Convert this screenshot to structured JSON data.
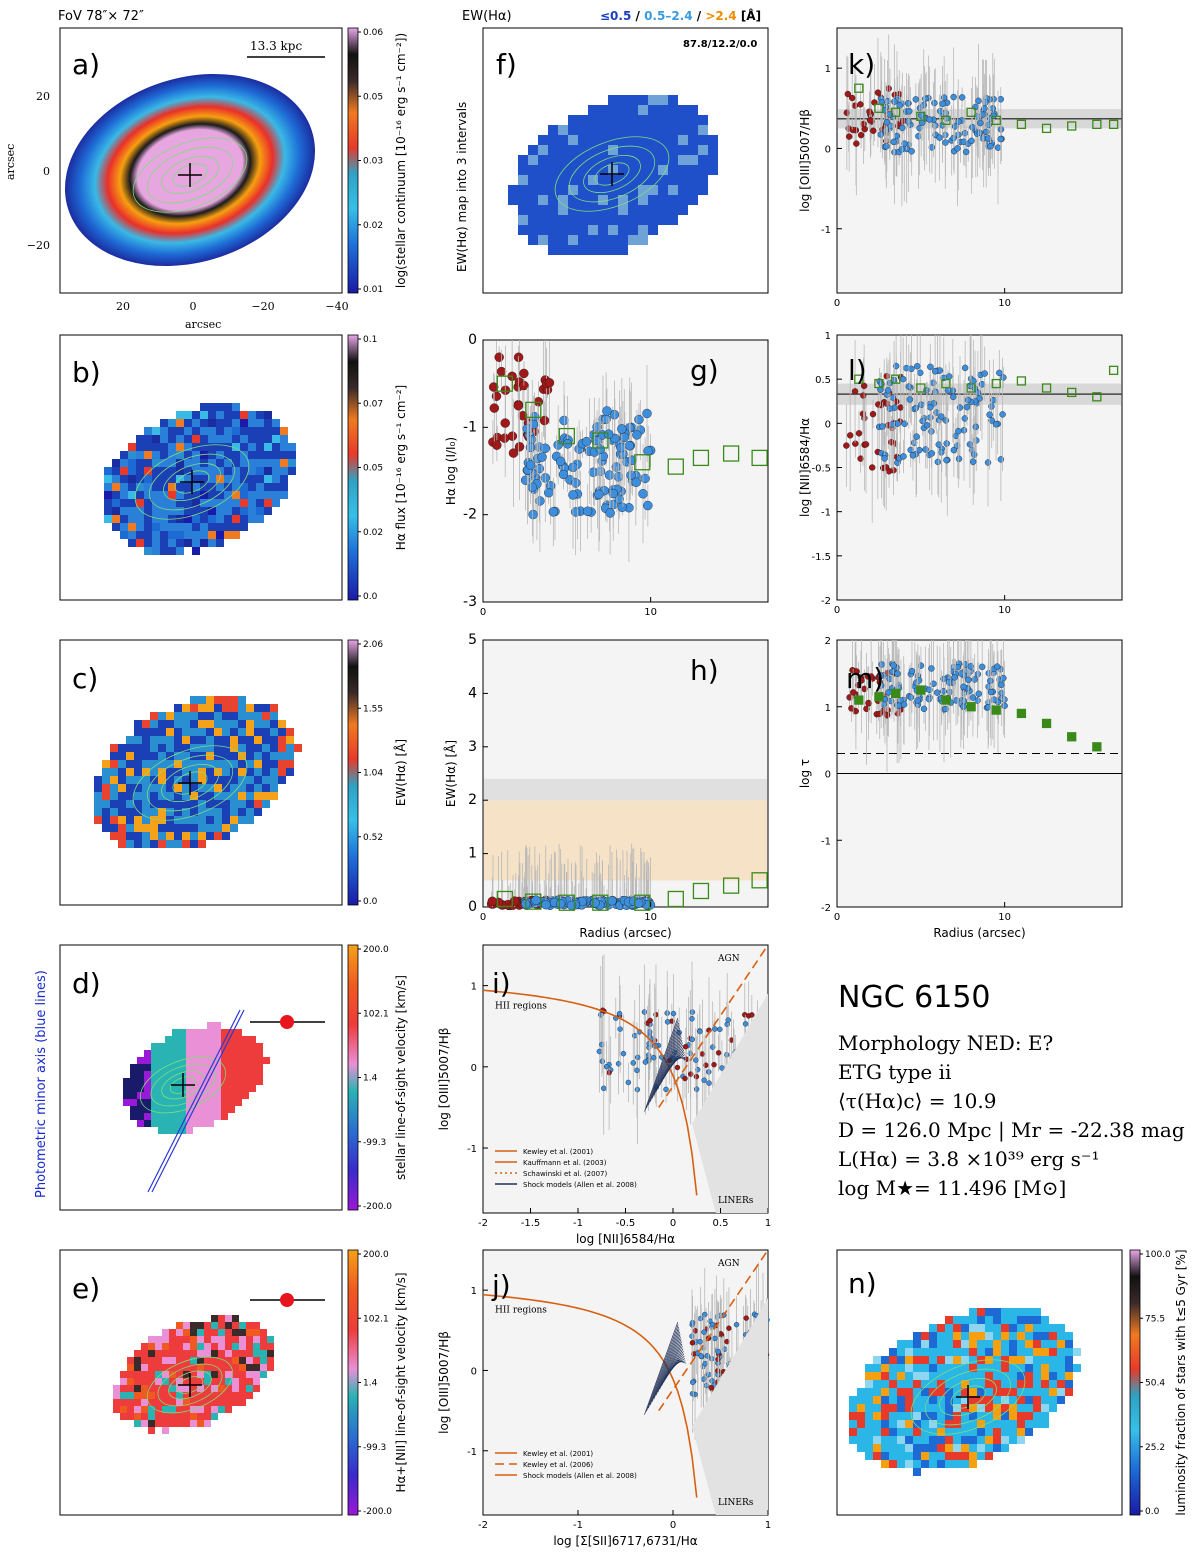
{
  "header": {
    "fov": "FoV 78″× 72″",
    "ew_title": "EW(Hα)",
    "ew_legend": [
      {
        "text": "≤0.5",
        "color": "#1b3fbf"
      },
      {
        "text": " / ",
        "color": "#000000"
      },
      {
        "text": "0.5–2.4",
        "color": "#3b9be0"
      },
      {
        "text": " / ",
        "color": "#000000"
      },
      {
        "text": ">2.4",
        "color": "#f08c00"
      },
      {
        "text": " [Å]",
        "color": "#000000"
      }
    ]
  },
  "galaxy": {
    "name": "NGC 6150",
    "lines": [
      "Morphology NED: E?",
      "ETG type ii",
      "⟨τ(Hα)c⟩ = 10.9",
      "D = 126.0 Mpc | Mr = -22.38 mag",
      "L(Hα) = 3.8 ×10³⁹ erg s⁻¹",
      "log M★= 11.496 [M⊙]"
    ]
  },
  "panels": {
    "a": {
      "label": "a)",
      "scalebar": "13.3 kpc",
      "xlabel": "arcsec",
      "ylabel": "arcsec",
      "xticks": [
        "20",
        "0",
        "−20",
        "−40"
      ],
      "yticks": [
        "20",
        "0",
        "−20"
      ],
      "cbar_label": "log(stellar continuum [10⁻¹⁶ erg s⁻¹ cm⁻²])",
      "cbar_ticks": [
        "0.06",
        "0.05",
        "0.03",
        "0.02",
        "0.01"
      ]
    },
    "b": {
      "label": "b)",
      "cbar_label": "Hα flux [10⁻¹⁶ erg s⁻¹ cm⁻²]",
      "cbar_ticks": [
        "0.1",
        "0.07",
        "0.05",
        "0.02",
        "0.0"
      ]
    },
    "c": {
      "label": "c)",
      "cbar_label": "EW(Hα) [Å]",
      "cbar_ticks": [
        "2.06",
        "1.55",
        "1.04",
        "0.52",
        "0.0"
      ]
    },
    "d": {
      "label": "d)",
      "side_label": "Photometric minor axis (blue lines)",
      "cbar_label": "stellar line-of-sight velocity [km/s]",
      "cbar_ticks": [
        "200.0",
        "102.1",
        "1.4",
        "-99.3",
        "-200.0"
      ]
    },
    "e": {
      "label": "e)",
      "cbar_label": "Hα+[NII] line-of-sight velocity [km/s]",
      "cbar_ticks": [
        "200.0",
        "102.1",
        "1.4",
        "-99.3",
        "-200.0"
      ]
    },
    "f": {
      "label": "f)",
      "annotation": "87.8/12.2/0.0",
      "ylabel": "EW(Hα) map into 3 intervals"
    },
    "g": {
      "label": "g)",
      "ylabel": "Hα log (I/I₀)"
    },
    "h": {
      "label": "h)",
      "ylabel": "EW(Hα) [Å]",
      "xlabel": "Radius (arcsec)"
    },
    "i": {
      "label": "i)",
      "ylabel": "log [OIII]5007/Hβ",
      "xlabel": "log [NII]6584/Hα",
      "regions": [
        "AGN",
        "HII regions",
        "LINERs"
      ],
      "legend": [
        "Kewley et al. (2001)",
        "Kauffmann et al. (2003)",
        "Schawinski et al. (2007)",
        "Shock models (Allen et al. 2008)"
      ]
    },
    "j": {
      "label": "j)",
      "ylabel": "log [OIII]5007/Hβ",
      "xlabel": "log [Σ[SII]6717,6731/Hα",
      "regions": [
        "AGN",
        "HII regions",
        "LINERs"
      ],
      "legend": [
        "Kewley et al. (2001)",
        "Kewley et al. (2006)",
        "Shock models (Allen et al. 2008)"
      ]
    },
    "k": {
      "label": "k)",
      "ylabel": "log [OIII]5007/Hβ"
    },
    "l": {
      "label": "l)",
      "ylabel": "log [NII]6584/Hα"
    },
    "m": {
      "label": "m)",
      "ylabel": "log τ",
      "xlabel": "Radius (arcsec)"
    },
    "n": {
      "label": "n)",
      "cbar_label": "luminosity fraction of stars with t≤5 Gyr [%]",
      "cbar_ticks": [
        "100.0",
        "75.5",
        "50.4",
        "25.2",
        "0.0"
      ]
    }
  },
  "chart_data": [
    {
      "panel": "g",
      "type": "scatter",
      "xlim": [
        0,
        17
      ],
      "ylim": [
        -3,
        0
      ],
      "xticks": [
        0,
        10
      ],
      "yticks": [
        0,
        -1,
        -2,
        -3
      ],
      "binned_profile": {
        "x": [
          1.3,
          3.0,
          5.0,
          7.0,
          9.5,
          11.5,
          13.0,
          14.8,
          16.5
        ],
        "y": [
          -0.5,
          -0.8,
          -1.1,
          -1.15,
          -1.4,
          -1.45,
          -1.35,
          -1.3,
          -1.35
        ]
      }
    },
    {
      "panel": "h",
      "type": "scatter",
      "xlim": [
        0,
        17
      ],
      "ylim": [
        0,
        5
      ],
      "xticks": [
        0,
        10
      ],
      "yticks": [
        0,
        1,
        2,
        3,
        4,
        5
      ],
      "bands": [
        {
          "from": 0.5,
          "to": 2.4,
          "color": "#e0e0e0"
        },
        {
          "from": 0.5,
          "to": 2.0,
          "color": "#f6e2c6"
        }
      ],
      "binned_profile": {
        "x": [
          1.3,
          3.0,
          5.0,
          7.0,
          9.5,
          11.5,
          13.0,
          14.8,
          16.5
        ],
        "y": [
          0.15,
          0.1,
          0.08,
          0.08,
          0.08,
          0.15,
          0.3,
          0.4,
          0.5
        ]
      }
    },
    {
      "panel": "k",
      "type": "scatter",
      "xlim": [
        0,
        17
      ],
      "ylim": [
        -1.8,
        1.5
      ],
      "xticks": [
        0,
        10
      ],
      "yticks": [
        1,
        0,
        -1
      ],
      "median": 0.37,
      "binned_profile": {
        "x": [
          1.3,
          2.5,
          3.5,
          5.0,
          6.5,
          8.0,
          9.5,
          11.0,
          12.5,
          14.0,
          15.5,
          16.5
        ],
        "y": [
          0.75,
          0.5,
          0.45,
          0.4,
          0.35,
          0.45,
          0.35,
          0.3,
          0.25,
          0.28,
          0.3,
          0.3
        ]
      }
    },
    {
      "panel": "l",
      "type": "scatter",
      "xlim": [
        0,
        17
      ],
      "ylim": [
        -2,
        1
      ],
      "xticks": [
        0,
        10
      ],
      "yticks": [
        1,
        0.5,
        0,
        -0.5,
        -1,
        -1.5,
        -2
      ],
      "median": 0.33,
      "binned_profile": {
        "x": [
          1.3,
          2.5,
          3.5,
          5.0,
          6.5,
          8.0,
          9.5,
          11.0,
          12.5,
          14.0,
          15.5,
          16.5
        ],
        "y": [
          0.5,
          0.45,
          0.5,
          0.4,
          0.45,
          0.4,
          0.45,
          0.48,
          0.4,
          0.35,
          0.3,
          0.6
        ]
      }
    },
    {
      "panel": "m",
      "type": "scatter",
      "xlim": [
        0,
        17
      ],
      "ylim": [
        -2,
        2
      ],
      "xticks": [
        0,
        10
      ],
      "yticks": [
        2,
        1,
        0,
        -1,
        -2
      ],
      "dashed": 0.3,
      "binned_profile": {
        "x": [
          1.3,
          2.5,
          3.5,
          5.0,
          6.5,
          8.0,
          9.5,
          11.0,
          12.5,
          14.0,
          15.5
        ],
        "y": [
          1.1,
          1.15,
          1.2,
          1.25,
          1.1,
          1.0,
          0.95,
          0.9,
          0.75,
          0.55,
          0.4
        ]
      }
    },
    {
      "panel": "i",
      "type": "scatter",
      "xlim": [
        -2,
        1
      ],
      "ylim": [
        -1.8,
        1.5
      ],
      "xticks": [
        -2,
        -1.5,
        -1,
        -0.5,
        0,
        0.5,
        1
      ],
      "yticks": [
        1,
        0,
        -1
      ]
    },
    {
      "panel": "j",
      "type": "scatter",
      "xlim": [
        -2,
        1
      ],
      "ylim": [
        -1.8,
        1.5
      ],
      "xticks": [
        -2,
        -1,
        0,
        1
      ],
      "yticks": [
        1,
        0,
        -1
      ]
    }
  ]
}
